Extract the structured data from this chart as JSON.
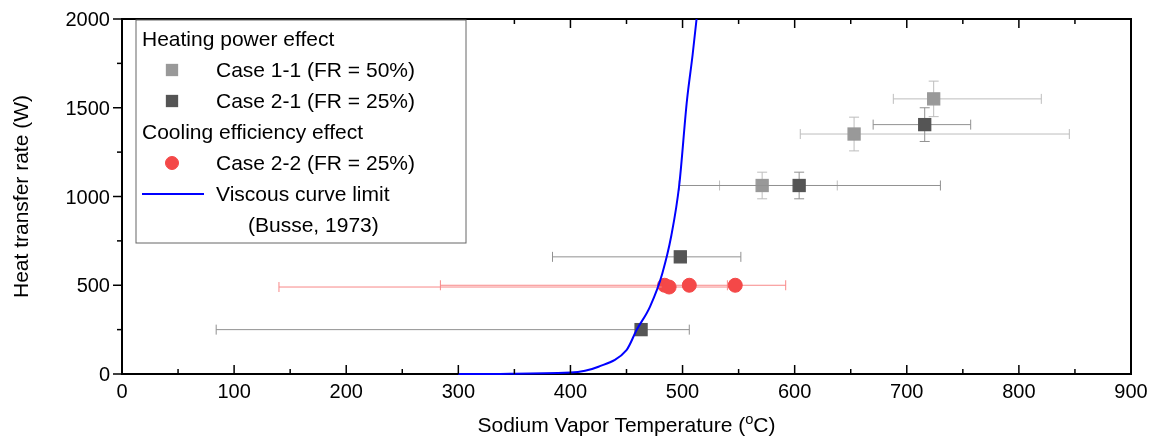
{
  "chart_data": {
    "type": "scatter",
    "xlabel": "Sodium Vapor Temperature ($^{o}$C)",
    "ylabel": "Heat transfer rate (W)",
    "xlim": [
      0,
      900
    ],
    "ylim": [
      0,
      2000
    ],
    "xticks": [
      0,
      {
        "value": 50,
        "label": null
      },
      100,
      {
        "value": 150,
        "label": null
      },
      200,
      {
        "value": 250,
        "label": null
      },
      300,
      {
        "value": 350,
        "label": null
      },
      400,
      {
        "value": 450,
        "label": null
      },
      500,
      {
        "value": 550,
        "label": null
      },
      600,
      {
        "value": 650,
        "label": null
      },
      700,
      {
        "value": 750,
        "label": null
      },
      800,
      {
        "value": 850,
        "label": null
      },
      900
    ],
    "yticks": [
      0,
      {
        "value": 250,
        "label": null
      },
      500,
      {
        "value": 750,
        "label": null
      },
      1000,
      {
        "value": 1250,
        "label": null
      },
      1500,
      {
        "value": 1750,
        "label": null
      },
      2000
    ],
    "legend": "top left",
    "annotations": [
      "Heating power effect",
      "Cooling efficiency effect"
    ],
    "series": [
      {
        "name": "Case 1-1 (FR = 50%)",
        "marker": "square",
        "color": "#999999",
        "x": [
          571,
          653,
          724
        ],
        "values": [
          1062,
          1352,
          1550
        ],
        "errors": [
          75,
          95,
          100
        ],
        "xerrors": [
          [
            533,
            638
          ],
          [
            605,
            845
          ],
          [
            688,
            820
          ]
        ]
      },
      {
        "name": "Case 2-1 (FR = 25%)",
        "marker": "square",
        "color": "#555555",
        "x": [
          463,
          498,
          604,
          716
        ],
        "values": [
          250,
          660,
          1062,
          1405
        ],
        "errors": [
          null,
          30,
          75,
          95
        ],
        "xerrors": [
          [
            84,
            506
          ],
          [
            384,
            552
          ],
          [
            497,
            730
          ],
          [
            670,
            757
          ]
        ]
      },
      {
        "name": "Case 2-2 (FR = 25%)",
        "marker": "circle",
        "color": "#f44848",
        "x": [
          484,
          488,
          506,
          547
        ],
        "values": [
          500,
          490,
          500,
          500
        ],
        "xerrors": [
          [
            284,
            540
          ],
          [
            140,
            550
          ],
          null,
          [
            545,
            592
          ]
        ]
      },
      {
        "name": "Viscous curve limit\n(Busse, 1973)",
        "type": "line",
        "color": "#0000ff",
        "x": [
          300,
          350,
          400,
          425,
          450,
          459,
          471,
          482,
          490,
          497,
          504,
          509,
          512.5
        ],
        "values": [
          0,
          1,
          8,
          41,
          135,
          248,
          380,
          568,
          780,
          1062,
          1545,
          1800,
          2000
        ]
      }
    ]
  }
}
